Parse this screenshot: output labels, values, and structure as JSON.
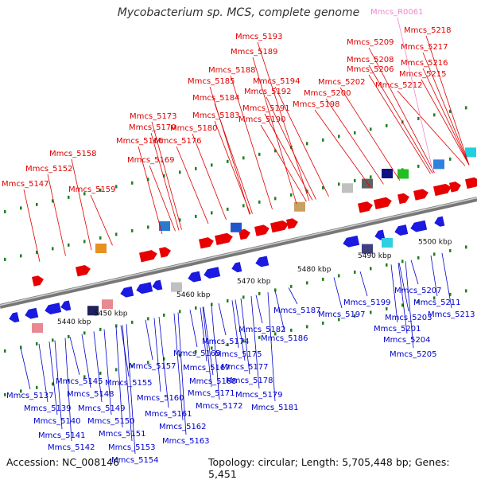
{
  "title": "Mycobacterium sp. MCS, complete genome",
  "accession": "Accession: NC_008146",
  "topology": "Topology: circular; Length: 5,705,448 bp; Genes: 5,451",
  "colors": {
    "forward_label": "#e00000",
    "reverse_label": "#0000cc",
    "rna_label": "#ee88cc",
    "backbone": "#999999",
    "tick": "#208020"
  },
  "scale_labels": [
    "5440 kbp",
    "5450 kbp",
    "5460 kbp",
    "5470 kbp",
    "5480 kbp",
    "5490 kbp",
    "5500 kbp"
  ],
  "forward_labels": [
    "Mmcs_5147",
    "Mmcs_5152",
    "Mmcs_5158",
    "Mmcs_5159",
    "Mmcs_5166",
    "Mmcs_5169",
    "Mmcs_5170",
    "Mmcs_5173",
    "Mmcs_5176",
    "Mmcs_5180",
    "Mmcs_5183",
    "Mmcs_5184",
    "Mmcs_5185",
    "Mmcs_5188",
    "Mmcs_5189",
    "Mmcs_5190",
    "Mmcs_5191",
    "Mmcs_5192",
    "Mmcs_5193",
    "Mmcs_5194",
    "Mmcs_5198",
    "Mmcs_5200",
    "Mmcs_5202",
    "Mmcs_5206",
    "Mmcs_5208",
    "Mmcs_5209",
    "Mmcs_5212",
    "Mmcs_5215",
    "Mmcs_5216",
    "Mmcs_5217",
    "Mmcs_5218"
  ],
  "rna_labels": [
    "Mmcs_R0061"
  ],
  "reverse_labels": [
    "Mmcs_5137",
    "Mmcs_5139",
    "Mmcs_5140",
    "Mmcs_5141",
    "Mmcs_5142",
    "Mmcs_5145",
    "Mmcs_5148",
    "Mmcs_5149",
    "Mmcs_5150",
    "Mmcs_5151",
    "Mmcs_5153",
    "Mmcs_5154",
    "Mmcs_5155",
    "Mmcs_5157",
    "Mmcs_5160",
    "Mmcs_5161",
    "Mmcs_5162",
    "Mmcs_5163",
    "Mmcs_5165",
    "Mmcs_5167",
    "Mmcs_5168",
    "Mmcs_5171",
    "Mmcs_5172",
    "Mmcs_5174",
    "Mmcs_5175",
    "Mmcs_5177",
    "Mmcs_5178",
    "Mmcs_5179",
    "Mmcs_5181",
    "Mmcs_5182",
    "Mmcs_5186",
    "Mmcs_5187",
    "Mmcs_5197",
    "Mmcs_5199",
    "Mmcs_5201",
    "Mmcs_5203",
    "Mmcs_5204",
    "Mmcs_5205",
    "Mmcs_5207",
    "Mmcs_5211",
    "Mmcs_5213"
  ]
}
